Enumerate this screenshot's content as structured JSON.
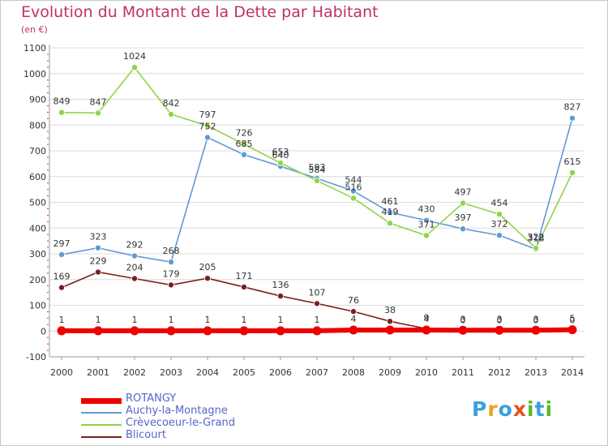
{
  "title": "Evolution du Montant de la Dette par Habitant",
  "unit": "(en €)",
  "logo": {
    "letters": [
      "P",
      "r",
      "o",
      "x",
      "i",
      "t",
      "i"
    ],
    "colors": [
      "#3aa0dc",
      "#f0a020",
      "#3aa0dc",
      "#e8501a",
      "#5ab82e",
      "#3aa0dc",
      "#5ab82e"
    ]
  },
  "chart_data": {
    "type": "line",
    "title": "Evolution du Montant de la Dette par Habitant",
    "ylabel": "(en €)",
    "x": [
      "2000",
      "2001",
      "2002",
      "2003",
      "2004",
      "2005",
      "2006",
      "2007",
      "2008",
      "2009",
      "2010",
      "2011",
      "2012",
      "2013",
      "2014"
    ],
    "ylim": [
      -100,
      1100
    ],
    "yticks": [
      "-100",
      "0",
      "100",
      "200",
      "300",
      "400",
      "500",
      "600",
      "700",
      "800",
      "900",
      "1000",
      "1100"
    ],
    "grid": "horizontal",
    "legend": "bottom-left",
    "series": [
      {
        "name": "ROTANGY",
        "color": "#ee0000",
        "values": [
          1,
          1,
          1,
          1,
          1,
          1,
          1,
          1,
          4,
          4,
          4,
          3,
          3,
          3,
          5
        ],
        "labels": [
          "1",
          "1",
          "1",
          "1",
          "1",
          "1",
          "1",
          "1",
          "4",
          "",
          "4",
          "3",
          "3",
          "3",
          "5"
        ]
      },
      {
        "name": "Auchy-la-Montagne",
        "color": "#5f9bd6",
        "values": [
          297,
          323,
          292,
          268,
          752,
          685,
          640,
          593,
          544,
          461,
          430,
          397,
          372,
          318,
          827
        ],
        "labels": [
          "297",
          "323",
          "292",
          "268",
          "752",
          "685",
          "640",
          "593",
          "544",
          "461",
          "430",
          "397",
          "372",
          "318",
          "827"
        ]
      },
      {
        "name": "Crèvecoeur-le-Grand",
        "color": "#8fd44a",
        "values": [
          849,
          847,
          1024,
          842,
          797,
          726,
          653,
          584,
          516,
          419,
          371,
          497,
          454,
          322,
          615
        ],
        "labels": [
          "849",
          "847",
          "1024",
          "842",
          "797",
          "726",
          "653",
          "584",
          "516",
          "419",
          "371",
          "497",
          "454",
          "322",
          "615"
        ]
      },
      {
        "name": "Blicourt",
        "color": "#7a2020",
        "values": [
          169,
          229,
          204,
          179,
          205,
          171,
          136,
          107,
          76,
          38,
          9,
          0,
          0,
          0,
          0
        ],
        "labels": [
          "169",
          "229",
          "204",
          "179",
          "205",
          "171",
          "136",
          "107",
          "76",
          "38",
          "9",
          "0",
          "0",
          "0",
          "0"
        ]
      }
    ]
  }
}
